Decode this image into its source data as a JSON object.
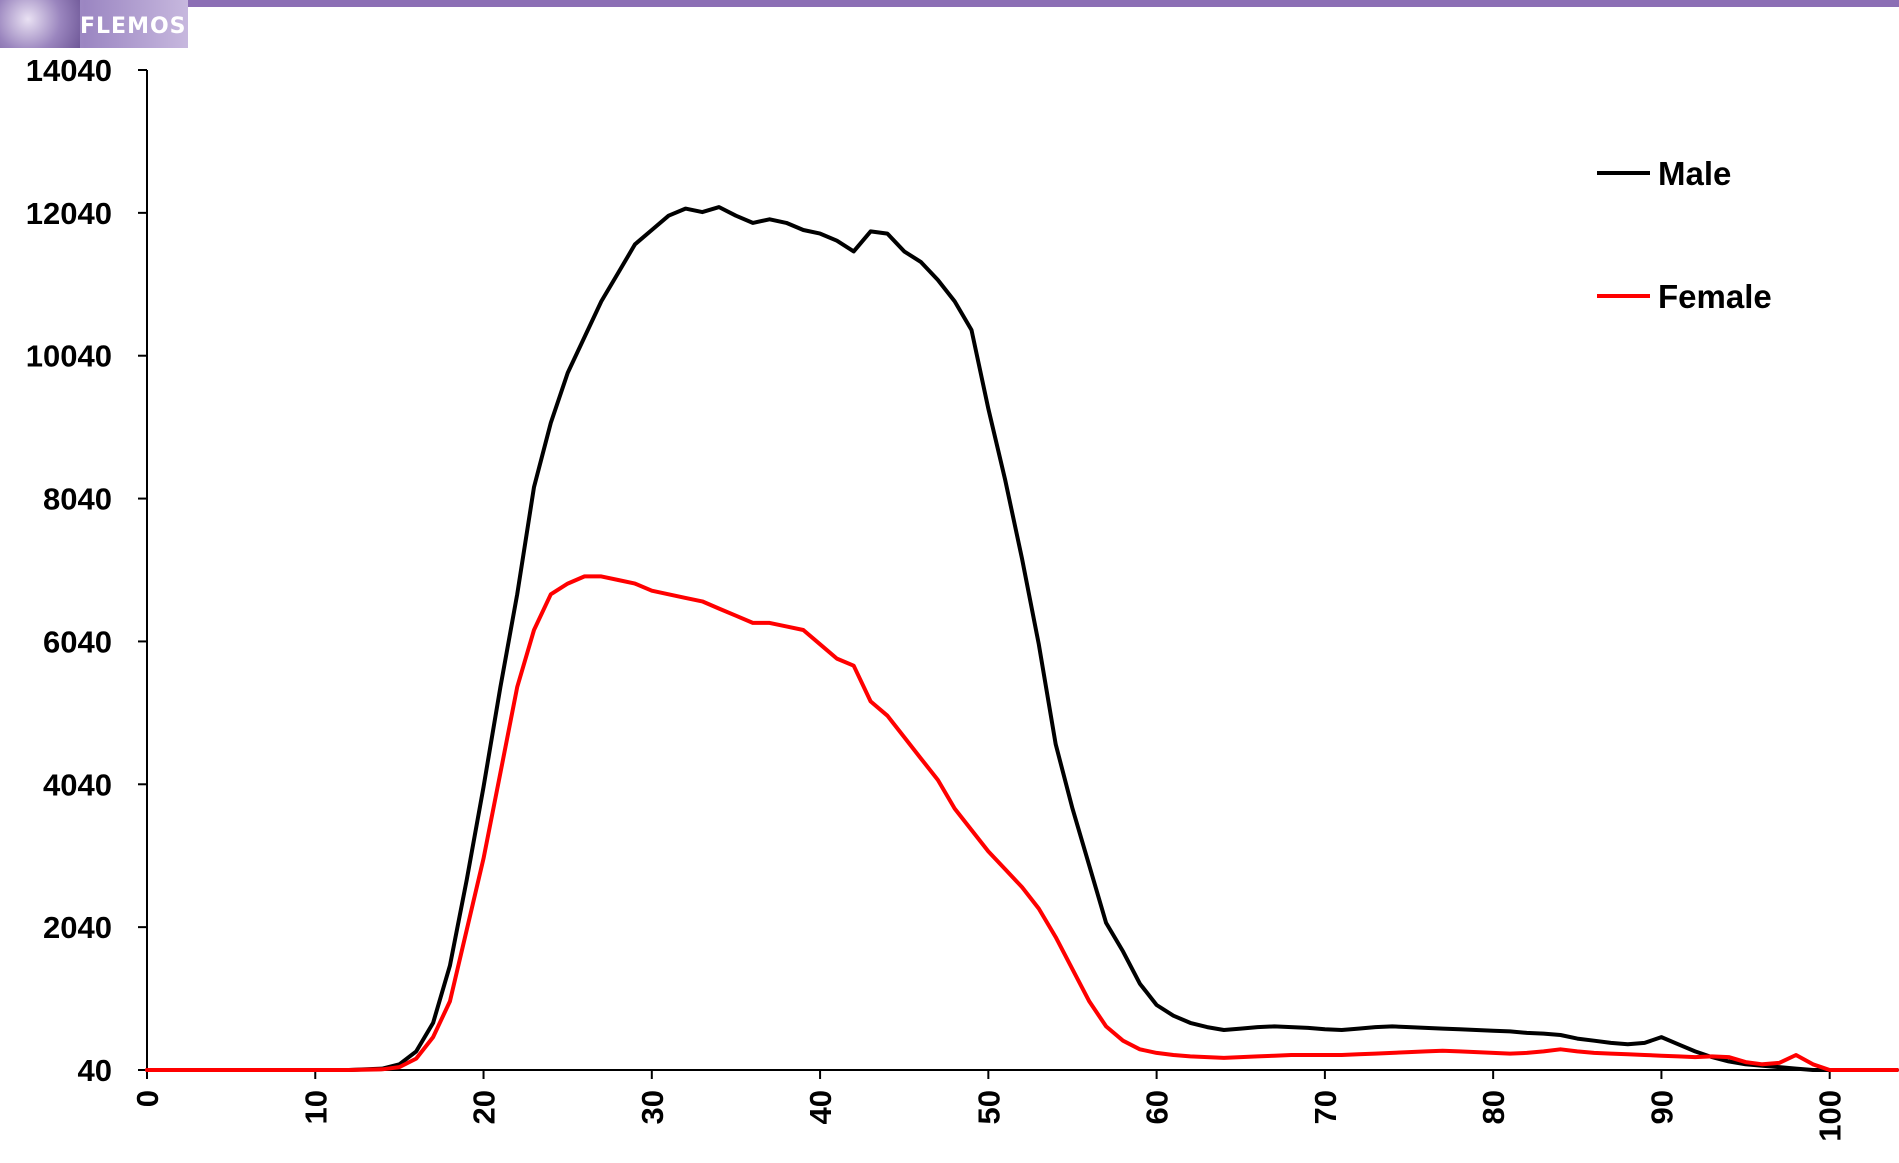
{
  "logo": {
    "text": "FLEMOSI"
  },
  "chart_data": {
    "type": "line",
    "title": "",
    "xlabel": "",
    "ylabel": "",
    "xlim": [
      0,
      104
    ],
    "ylim": [
      40,
      14040
    ],
    "x_ticks": [
      0,
      10,
      20,
      30,
      40,
      50,
      60,
      70,
      80,
      90,
      100
    ],
    "y_ticks": [
      40,
      2040,
      4040,
      6040,
      8040,
      10040,
      12040,
      14040
    ],
    "grid": false,
    "legend_position": "top-right",
    "series": [
      {
        "name": "Male",
        "color": "#000000",
        "points": [
          [
            0,
            40
          ],
          [
            12,
            40
          ],
          [
            14,
            60
          ],
          [
            15,
            120
          ],
          [
            16,
            300
          ],
          [
            17,
            700
          ],
          [
            18,
            1500
          ],
          [
            19,
            2700
          ],
          [
            20,
            4000
          ],
          [
            21,
            5400
          ],
          [
            22,
            6700
          ],
          [
            23,
            8200
          ],
          [
            24,
            9100
          ],
          [
            25,
            9800
          ],
          [
            26,
            10300
          ],
          [
            27,
            10800
          ],
          [
            28,
            11200
          ],
          [
            29,
            11600
          ],
          [
            30,
            11800
          ],
          [
            31,
            12000
          ],
          [
            32,
            12100
          ],
          [
            33,
            12050
          ],
          [
            34,
            12120
          ],
          [
            35,
            12000
          ],
          [
            36,
            11900
          ],
          [
            37,
            11950
          ],
          [
            38,
            11900
          ],
          [
            39,
            11800
          ],
          [
            40,
            11750
          ],
          [
            41,
            11650
          ],
          [
            42,
            11500
          ],
          [
            43,
            11780
          ],
          [
            44,
            11750
          ],
          [
            45,
            11500
          ],
          [
            46,
            11350
          ],
          [
            47,
            11100
          ],
          [
            48,
            10800
          ],
          [
            49,
            10400
          ],
          [
            50,
            9300
          ],
          [
            51,
            8300
          ],
          [
            52,
            7200
          ],
          [
            53,
            6000
          ],
          [
            54,
            4600
          ],
          [
            55,
            3700
          ],
          [
            56,
            2900
          ],
          [
            57,
            2100
          ],
          [
            58,
            1700
          ],
          [
            59,
            1250
          ],
          [
            60,
            950
          ],
          [
            61,
            800
          ],
          [
            62,
            700
          ],
          [
            63,
            640
          ],
          [
            64,
            600
          ],
          [
            65,
            620
          ],
          [
            66,
            640
          ],
          [
            67,
            650
          ],
          [
            68,
            640
          ],
          [
            69,
            630
          ],
          [
            70,
            610
          ],
          [
            71,
            600
          ],
          [
            72,
            620
          ],
          [
            73,
            640
          ],
          [
            74,
            650
          ],
          [
            75,
            640
          ],
          [
            76,
            630
          ],
          [
            77,
            620
          ],
          [
            78,
            610
          ],
          [
            79,
            600
          ],
          [
            80,
            590
          ],
          [
            81,
            580
          ],
          [
            82,
            560
          ],
          [
            83,
            550
          ],
          [
            84,
            530
          ],
          [
            85,
            480
          ],
          [
            86,
            450
          ],
          [
            87,
            420
          ],
          [
            88,
            400
          ],
          [
            89,
            420
          ],
          [
            90,
            500
          ],
          [
            91,
            400
          ],
          [
            92,
            300
          ],
          [
            93,
            220
          ],
          [
            94,
            160
          ],
          [
            95,
            120
          ],
          [
            96,
            100
          ],
          [
            97,
            80
          ],
          [
            98,
            60
          ],
          [
            99,
            40
          ],
          [
            104,
            40
          ]
        ]
      },
      {
        "name": "Female",
        "color": "#ff0000",
        "points": [
          [
            0,
            40
          ],
          [
            12,
            40
          ],
          [
            14,
            50
          ],
          [
            15,
            80
          ],
          [
            16,
            200
          ],
          [
            17,
            500
          ],
          [
            18,
            1000
          ],
          [
            19,
            2000
          ],
          [
            20,
            3000
          ],
          [
            21,
            4200
          ],
          [
            22,
            5400
          ],
          [
            23,
            6200
          ],
          [
            24,
            6700
          ],
          [
            25,
            6850
          ],
          [
            26,
            6950
          ],
          [
            27,
            6950
          ],
          [
            28,
            6900
          ],
          [
            29,
            6850
          ],
          [
            30,
            6750
          ],
          [
            31,
            6700
          ],
          [
            32,
            6650
          ],
          [
            33,
            6600
          ],
          [
            34,
            6500
          ],
          [
            35,
            6400
          ],
          [
            36,
            6300
          ],
          [
            37,
            6300
          ],
          [
            38,
            6250
          ],
          [
            39,
            6200
          ],
          [
            40,
            6000
          ],
          [
            41,
            5800
          ],
          [
            42,
            5700
          ],
          [
            43,
            5200
          ],
          [
            44,
            5000
          ],
          [
            45,
            4700
          ],
          [
            46,
            4400
          ],
          [
            47,
            4100
          ],
          [
            48,
            3700
          ],
          [
            49,
            3400
          ],
          [
            50,
            3100
          ],
          [
            51,
            2850
          ],
          [
            52,
            2600
          ],
          [
            53,
            2300
          ],
          [
            54,
            1900
          ],
          [
            55,
            1450
          ],
          [
            56,
            1000
          ],
          [
            57,
            650
          ],
          [
            58,
            450
          ],
          [
            59,
            330
          ],
          [
            60,
            280
          ],
          [
            61,
            250
          ],
          [
            62,
            230
          ],
          [
            63,
            220
          ],
          [
            64,
            210
          ],
          [
            65,
            220
          ],
          [
            66,
            230
          ],
          [
            67,
            240
          ],
          [
            68,
            250
          ],
          [
            69,
            250
          ],
          [
            70,
            250
          ],
          [
            71,
            250
          ],
          [
            72,
            260
          ],
          [
            73,
            270
          ],
          [
            74,
            280
          ],
          [
            75,
            290
          ],
          [
            76,
            300
          ],
          [
            77,
            310
          ],
          [
            78,
            300
          ],
          [
            79,
            290
          ],
          [
            80,
            280
          ],
          [
            81,
            270
          ],
          [
            82,
            280
          ],
          [
            83,
            300
          ],
          [
            84,
            330
          ],
          [
            85,
            300
          ],
          [
            86,
            280
          ],
          [
            87,
            270
          ],
          [
            88,
            260
          ],
          [
            89,
            250
          ],
          [
            90,
            240
          ],
          [
            91,
            230
          ],
          [
            92,
            220
          ],
          [
            93,
            230
          ],
          [
            94,
            220
          ],
          [
            95,
            150
          ],
          [
            96,
            120
          ],
          [
            97,
            140
          ],
          [
            98,
            250
          ],
          [
            99,
            120
          ],
          [
            100,
            40
          ],
          [
            104,
            40
          ]
        ]
      }
    ]
  }
}
